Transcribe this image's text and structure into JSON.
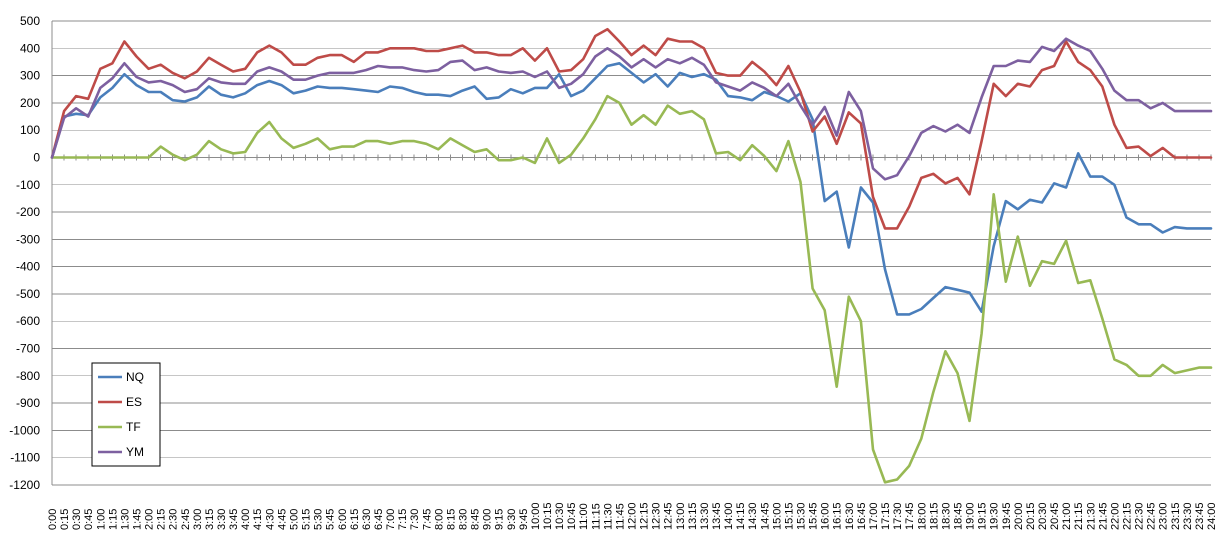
{
  "chart_data": {
    "type": "line",
    "title": "",
    "xlabel": "",
    "ylabel": "",
    "ylim": [
      -1200,
      500
    ],
    "yticks": [
      500,
      400,
      300,
      200,
      100,
      0,
      -100,
      -200,
      -300,
      -400,
      -500,
      -600,
      -700,
      -800,
      -900,
      -1000,
      -1100,
      -1200
    ],
    "grid": true,
    "legend_position": "bottom-left",
    "x": [
      "0:00",
      "0:15",
      "0:30",
      "0:45",
      "1:00",
      "1:15",
      "1:30",
      "1:45",
      "2:00",
      "2:15",
      "2:30",
      "2:45",
      "3:00",
      "3:15",
      "3:30",
      "3:45",
      "4:00",
      "4:15",
      "4:30",
      "4:45",
      "5:00",
      "5:15",
      "5:30",
      "5:45",
      "6:00",
      "6:15",
      "6:30",
      "6:45",
      "7:00",
      "7:15",
      "7:30",
      "7:45",
      "8:00",
      "8:15",
      "8:30",
      "8:45",
      "9:00",
      "9:15",
      "9:30",
      "9:45",
      "10:00",
      "10:15",
      "10:30",
      "10:45",
      "11:00",
      "11:15",
      "11:30",
      "11:45",
      "12:00",
      "12:15",
      "12:30",
      "12:45",
      "13:00",
      "13:15",
      "13:30",
      "13:45",
      "14:00",
      "14:15",
      "14:30",
      "14:45",
      "15:00",
      "15:15",
      "15:30",
      "15:45",
      "16:00",
      "16:15",
      "16:30",
      "16:45",
      "17:00",
      "17:15",
      "17:30",
      "17:45",
      "18:00",
      "18:15",
      "18:30",
      "18:45",
      "19:00",
      "19:15",
      "19:30",
      "19:45",
      "20:00",
      "20:15",
      "20:30",
      "20:45",
      "21:00",
      "21:15",
      "21:30",
      "21:45",
      "22:00",
      "22:15",
      "22:30",
      "22:45",
      "23:00",
      "23:15",
      "23:30",
      "23:45",
      "24:00"
    ],
    "series": [
      {
        "name": "NQ",
        "color": "#4a7ebb",
        "values": [
          0,
          150,
          160,
          155,
          220,
          255,
          305,
          265,
          240,
          240,
          210,
          205,
          220,
          260,
          230,
          220,
          235,
          265,
          280,
          265,
          235,
          245,
          260,
          255,
          255,
          250,
          245,
          240,
          260,
          255,
          240,
          230,
          230,
          225,
          245,
          260,
          215,
          220,
          250,
          235,
          255,
          255,
          305,
          225,
          245,
          290,
          335,
          345,
          310,
          275,
          305,
          260,
          310,
          295,
          305,
          285,
          225,
          220,
          210,
          240,
          225,
          205,
          235,
          140,
          -160,
          -125,
          -330,
          -110,
          -165,
          -410,
          -575,
          -575,
          -555,
          -515,
          -475,
          -485,
          -495,
          -565,
          -325,
          -160,
          -190,
          -155,
          -165,
          -95,
          -110,
          15,
          -70,
          -70,
          -100,
          -220,
          -245,
          -245,
          -275,
          -255,
          -260,
          -260,
          -260
        ]
      },
      {
        "name": "ES",
        "color": "#be4b48",
        "values": [
          0,
          170,
          225,
          215,
          325,
          345,
          425,
          370,
          325,
          340,
          310,
          290,
          315,
          365,
          340,
          315,
          325,
          385,
          410,
          385,
          340,
          340,
          365,
          375,
          375,
          350,
          385,
          385,
          400,
          400,
          400,
          390,
          390,
          400,
          410,
          385,
          385,
          375,
          375,
          400,
          355,
          400,
          315,
          320,
          360,
          445,
          470,
          425,
          375,
          410,
          375,
          435,
          425,
          425,
          400,
          310,
          300,
          300,
          350,
          315,
          265,
          335,
          240,
          95,
          150,
          50,
          165,
          125,
          -145,
          -260,
          -260,
          -180,
          -75,
          -60,
          -95,
          -75,
          -135,
          60,
          270,
          225,
          270,
          260,
          320,
          335,
          425,
          350,
          320,
          260,
          120,
          35,
          40,
          5,
          35,
          0,
          0,
          0,
          0
        ]
      },
      {
        "name": "TF",
        "color": "#98b954",
        "values": [
          0,
          0,
          0,
          0,
          0,
          0,
          0,
          0,
          0,
          40,
          10,
          -10,
          10,
          60,
          30,
          15,
          20,
          90,
          130,
          70,
          35,
          50,
          70,
          30,
          40,
          40,
          60,
          60,
          50,
          60,
          60,
          50,
          30,
          70,
          45,
          20,
          30,
          -10,
          -10,
          0,
          -20,
          70,
          -20,
          10,
          70,
          140,
          225,
          200,
          120,
          155,
          120,
          190,
          160,
          170,
          140,
          15,
          20,
          -10,
          45,
          5,
          -50,
          60,
          -90,
          -480,
          -560,
          -840,
          -510,
          -600,
          -1070,
          -1190,
          -1180,
          -1130,
          -1030,
          -860,
          -710,
          -790,
          -965,
          -645,
          -135,
          -455,
          -290,
          -470,
          -380,
          -390,
          -305,
          -460,
          -450,
          -590,
          -740,
          -760,
          -800,
          -800,
          -760,
          -790,
          -780,
          -770,
          -770
        ]
      },
      {
        "name": "YM",
        "color": "#7d60a0",
        "values": [
          0,
          145,
          180,
          150,
          255,
          290,
          345,
          295,
          275,
          280,
          265,
          240,
          250,
          290,
          275,
          270,
          270,
          315,
          330,
          315,
          285,
          285,
          300,
          310,
          310,
          310,
          320,
          335,
          330,
          330,
          320,
          315,
          320,
          350,
          355,
          320,
          330,
          315,
          310,
          315,
          295,
          315,
          255,
          270,
          305,
          370,
          400,
          370,
          330,
          360,
          330,
          360,
          345,
          365,
          340,
          275,
          260,
          245,
          275,
          255,
          225,
          270,
          190,
          120,
          185,
          80,
          240,
          170,
          -40,
          -80,
          -65,
          5,
          90,
          115,
          95,
          120,
          90,
          220,
          335,
          335,
          355,
          350,
          405,
          390,
          435,
          410,
          390,
          325,
          245,
          210,
          210,
          180,
          200,
          170,
          170,
          170,
          170
        ]
      }
    ]
  }
}
